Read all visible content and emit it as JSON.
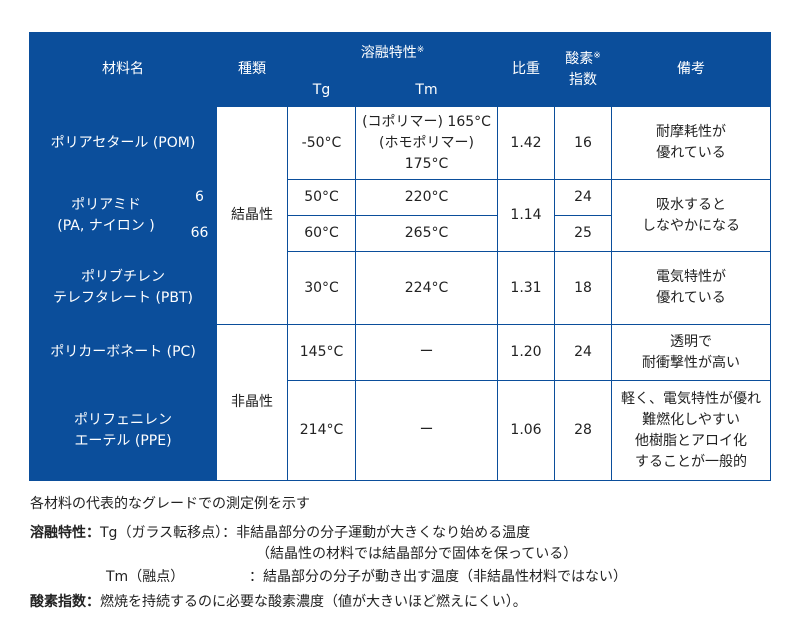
{
  "colors": {
    "header_blue": "#0b4e9b",
    "text": "#222222"
  },
  "table": {
    "headers": {
      "material": "材料名",
      "type": "種類",
      "melt": "溶融特性",
      "melt_mark": "※",
      "tg": "Tg",
      "tm": "Tm",
      "sg": "比重",
      "oxygen_l1": "酸素",
      "oxygen_mark": "※",
      "oxygen_l2": "指数",
      "remarks": "備考"
    },
    "types": {
      "crystalline": "結晶性",
      "amorphous": "非晶性"
    },
    "rows": {
      "pom": {
        "name": "ポリアセタール (POM)",
        "tg": "-50°C",
        "tm_l1": "(コポリマー) 165°C",
        "tm_l2": "(ホモポリマー) 175°C",
        "sg": "1.42",
        "oi": "16",
        "remark_l1": "耐摩耗性が",
        "remark_l2": "優れている"
      },
      "pa": {
        "name_l1": "ポリアミド",
        "name_l2": "(PA, ナイロン )",
        "sub6": "6",
        "sub66": "66",
        "tg6": "50°C",
        "tm6": "220°C",
        "tg66": "60°C",
        "tm66": "265°C",
        "sg": "1.14",
        "oi6": "24",
        "oi66": "25",
        "remark_l1": "吸水すると",
        "remark_l2": "しなやかになる"
      },
      "pbt": {
        "name_l1": "ポリブチレン",
        "name_l2": "テレフタレート (PBT)",
        "tg": "30°C",
        "tm": "224°C",
        "sg": "1.31",
        "oi": "18",
        "remark_l1": "電気特性が",
        "remark_l2": "優れている"
      },
      "pc": {
        "name": "ポリカーボネート (PC)",
        "tg": "145°C",
        "tm": "ー",
        "sg": "1.20",
        "oi": "24",
        "remark_l1": "透明で",
        "remark_l2": "耐衝撃性が高い"
      },
      "ppe": {
        "name_l1": "ポリフェニレン",
        "name_l2": "エーテル (PPE)",
        "tg": "214°C",
        "tm": "ー",
        "sg": "1.06",
        "oi": "28",
        "remark_l1": "軽く、電気特性が優れ",
        "remark_l2": "難燃化しやすい",
        "remark_l3": "他樹脂とアロイ化",
        "remark_l4": "することが一般的"
      }
    }
  },
  "notes": {
    "line1": "各材料の代表的なグレードでの測定例を示す",
    "melt_label": "溶融特性：",
    "melt_tg": "Tg（ガラス転移点）：非結晶部分の分子運動が大きくなり始める温度",
    "melt_tg2": "（結晶性の材料では結晶部分で固体を保っている）",
    "melt_tm": "Tm（融点）",
    "melt_tm_desc": "：結晶部分の分子が動き出す温度（非結晶性材料ではない）",
    "oi_label": "酸素指数：",
    "oi_desc": "燃焼を持続するのに必要な酸素濃度（値が大きいほど燃えにくい）。"
  }
}
